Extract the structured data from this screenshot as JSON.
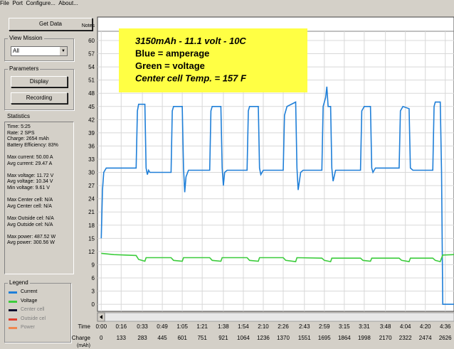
{
  "menu": [
    "File",
    "Port",
    "Configure...",
    "About..."
  ],
  "buttons": {
    "get_data": "Get Data",
    "display": "Display",
    "recording": "Recording"
  },
  "view_mission": {
    "label": "View Mission",
    "selected": "All"
  },
  "parameters_label": "Parameters",
  "statistics": {
    "label": "Statistics",
    "groups": [
      [
        "Time: 5:25",
        "Rate: 2 SPS",
        "Charge: 2654 mAh",
        "Battery Efficiency: 83%"
      ],
      [
        "Max current: 50.00 A",
        "Avg current: 29.47 A"
      ],
      [
        "Max voltage: 11.72 V",
        "Avg voltage: 10.34 V",
        "Min voltage: 9.61 V"
      ],
      [
        "Max Center cell: N/A",
        "Avg Center cell: N/A"
      ],
      [
        "Max Outside cel: N/A",
        "Avg Outside cel: N/A"
      ],
      [
        "Max power: 487.52 W",
        "Avg power: 300.56 W"
      ]
    ]
  },
  "legend": {
    "label": "Legend",
    "items": [
      {
        "name": "Current",
        "color": "#1f7fd8",
        "active": true
      },
      {
        "name": "Voltage",
        "color": "#3ccc3c",
        "active": true
      },
      {
        "name": "Center cell",
        "color": "#101030",
        "active": false
      },
      {
        "name": "Outside cel",
        "color": "#e04030",
        "active": false
      },
      {
        "name": "Power",
        "color": "#f08850",
        "active": false
      }
    ]
  },
  "chart_data": {
    "type": "line",
    "notes_label": "Notes",
    "x_label": "Time",
    "charge_label": "Charge",
    "charge_unit": "(mAh)",
    "annotation": [
      "3150mAh - 11.1 volt - 10C",
      "Blue = amperage",
      "Green = voltage",
      "Center cell Temp. = 157 F"
    ],
    "ylim": [
      -1.6,
      62.1
    ],
    "yticks": [
      0,
      3,
      6,
      9,
      12,
      15,
      18,
      21,
      24,
      27,
      30,
      33,
      36,
      39,
      42,
      45,
      48,
      51,
      54,
      57,
      60
    ],
    "xlim": [
      -3,
      283
    ],
    "xticks": [
      {
        "value": 0,
        "label": "0:00"
      },
      {
        "value": 16,
        "label": "0:16"
      },
      {
        "value": 33,
        "label": "0:33"
      },
      {
        "value": 49,
        "label": "0:49"
      },
      {
        "value": 65,
        "label": "1:05"
      },
      {
        "value": 81,
        "label": "1:21"
      },
      {
        "value": 98,
        "label": "1:38"
      },
      {
        "value": 114,
        "label": "1:54"
      },
      {
        "value": 130,
        "label": "2:10"
      },
      {
        "value": 146,
        "label": "2:26"
      },
      {
        "value": 163,
        "label": "2:43"
      },
      {
        "value": 179,
        "label": "2:59"
      },
      {
        "value": 195,
        "label": "3:15"
      },
      {
        "value": 211,
        "label": "3:31"
      },
      {
        "value": 228,
        "label": "3:48"
      },
      {
        "value": 244,
        "label": "4:04"
      },
      {
        "value": 260,
        "label": "4:20"
      },
      {
        "value": 276,
        "label": "4:36"
      }
    ],
    "charge": [
      0,
      133,
      283,
      445,
      601,
      751,
      921,
      1064,
      1236,
      1370,
      1551,
      1695,
      1864,
      1998,
      2170,
      2322,
      2474,
      2626
    ],
    "grid": true,
    "series": [
      {
        "name": "Current",
        "color": "#1f7fd8",
        "x": [
          0,
          1,
          2,
          4,
          28,
          29,
          30,
          35,
          36,
          37,
          38,
          39,
          56,
          57,
          58,
          65,
          66,
          67,
          68,
          70,
          87,
          88,
          89,
          96,
          97,
          98,
          99,
          101,
          117,
          118,
          119,
          126,
          127,
          128,
          130,
          146,
          147,
          149,
          156,
          157,
          158,
          160,
          162,
          177,
          178,
          180,
          181,
          182,
          184,
          185,
          186,
          188,
          208,
          209,
          211,
          216,
          217,
          218,
          220,
          239,
          240,
          242,
          247,
          248,
          250,
          266,
          267,
          268,
          272,
          273,
          274,
          283
        ],
        "values": [
          15,
          26,
          30,
          31,
          31,
          44,
          45.5,
          45.5,
          31,
          29.5,
          30.5,
          30,
          30,
          44,
          45,
          45,
          31,
          25.5,
          29,
          30.5,
          30.5,
          44,
          45,
          45,
          31,
          27,
          30,
          30.5,
          30.5,
          44,
          45,
          45,
          31,
          29.5,
          30.5,
          30.5,
          43,
          45,
          46,
          31,
          26,
          30,
          30.5,
          30.5,
          45,
          47,
          49.5,
          45,
          45,
          31,
          28,
          30.5,
          30.5,
          44,
          45,
          45,
          31,
          30,
          31,
          31,
          44,
          45,
          44.5,
          31,
          30.5,
          30.5,
          45,
          46,
          46,
          30,
          0,
          0
        ]
      },
      {
        "name": "Voltage",
        "color": "#3ccc3c",
        "x": [
          0,
          10,
          28,
          30,
          35,
          36,
          56,
          58,
          65,
          66,
          87,
          89,
          96,
          97,
          117,
          119,
          126,
          127,
          146,
          148,
          156,
          157,
          177,
          179,
          184,
          185,
          208,
          210,
          216,
          217,
          239,
          241,
          247,
          248,
          266,
          268,
          272,
          273,
          274,
          283
        ],
        "values": [
          11.6,
          11.3,
          11.1,
          10.2,
          9.8,
          10.6,
          10.6,
          10,
          9.8,
          10.6,
          10.6,
          10,
          9.8,
          10.6,
          10.6,
          10,
          9.8,
          10.6,
          10.6,
          10,
          9.7,
          10.6,
          10.5,
          10,
          9.7,
          10.5,
          10.5,
          10,
          9.8,
          10.5,
          10.5,
          10,
          9.7,
          10.5,
          10.5,
          10,
          9.7,
          10.5,
          11.2,
          11.3
        ]
      }
    ]
  }
}
